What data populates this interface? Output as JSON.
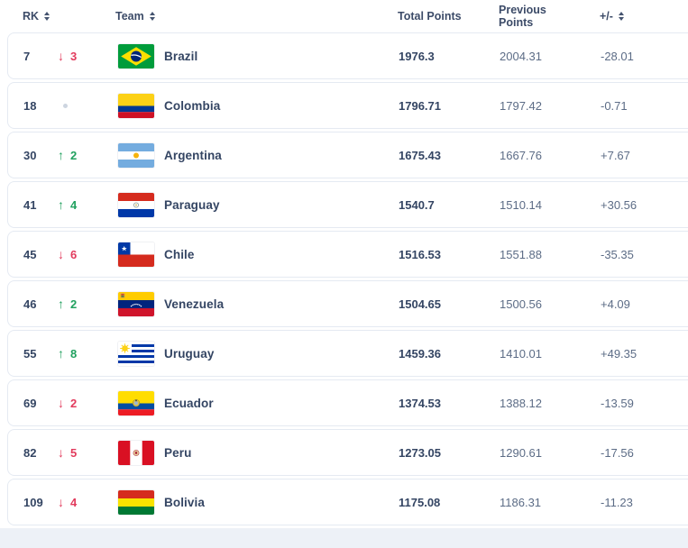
{
  "table": {
    "columns": [
      {
        "label": "RK",
        "sortable": true
      },
      {
        "label": "Team",
        "sortable": true
      },
      {
        "label": "Total Points",
        "sortable": false
      },
      {
        "label": "Previous Points",
        "sortable": false
      },
      {
        "label": "+/-",
        "sortable": true
      }
    ],
    "rows": [
      {
        "rank": "7",
        "movement": "down",
        "movement_value": "3",
        "team": "Brazil",
        "flag": "brazil",
        "total_points": "1976.3",
        "previous_points": "2004.31",
        "diff": "-28.01"
      },
      {
        "rank": "18",
        "movement": "none",
        "movement_value": "",
        "team": "Colombia",
        "flag": "colombia",
        "total_points": "1796.71",
        "previous_points": "1797.42",
        "diff": "-0.71"
      },
      {
        "rank": "30",
        "movement": "up",
        "movement_value": "2",
        "team": "Argentina",
        "flag": "argentina",
        "total_points": "1675.43",
        "previous_points": "1667.76",
        "diff": "+7.67"
      },
      {
        "rank": "41",
        "movement": "up",
        "movement_value": "4",
        "team": "Paraguay",
        "flag": "paraguay",
        "total_points": "1540.7",
        "previous_points": "1510.14",
        "diff": "+30.56"
      },
      {
        "rank": "45",
        "movement": "down",
        "movement_value": "6",
        "team": "Chile",
        "flag": "chile",
        "total_points": "1516.53",
        "previous_points": "1551.88",
        "diff": "-35.35"
      },
      {
        "rank": "46",
        "movement": "up",
        "movement_value": "2",
        "team": "Venezuela",
        "flag": "venezuela",
        "total_points": "1504.65",
        "previous_points": "1500.56",
        "diff": "+4.09"
      },
      {
        "rank": "55",
        "movement": "up",
        "movement_value": "8",
        "team": "Uruguay",
        "flag": "uruguay",
        "total_points": "1459.36",
        "previous_points": "1410.01",
        "diff": "+49.35"
      },
      {
        "rank": "69",
        "movement": "down",
        "movement_value": "2",
        "team": "Ecuador",
        "flag": "ecuador",
        "total_points": "1374.53",
        "previous_points": "1388.12",
        "diff": "-13.59"
      },
      {
        "rank": "82",
        "movement": "down",
        "movement_value": "5",
        "team": "Peru",
        "flag": "peru",
        "total_points": "1273.05",
        "previous_points": "1290.61",
        "diff": "-17.56"
      },
      {
        "rank": "109",
        "movement": "down",
        "movement_value": "4",
        "team": "Bolivia",
        "flag": "bolivia",
        "total_points": "1175.08",
        "previous_points": "1186.31",
        "diff": "-11.23"
      }
    ]
  },
  "icons": {
    "up_arrow": "↑",
    "down_arrow": "↓",
    "no_change": "dot"
  },
  "colors": {
    "up_green": "#21a15f",
    "down_red": "#e23b5d",
    "text_dark": "#344563",
    "text_muted": "#5c6c86",
    "card_border": "#e5eaf2",
    "footer_bg": "#edf1f7"
  }
}
